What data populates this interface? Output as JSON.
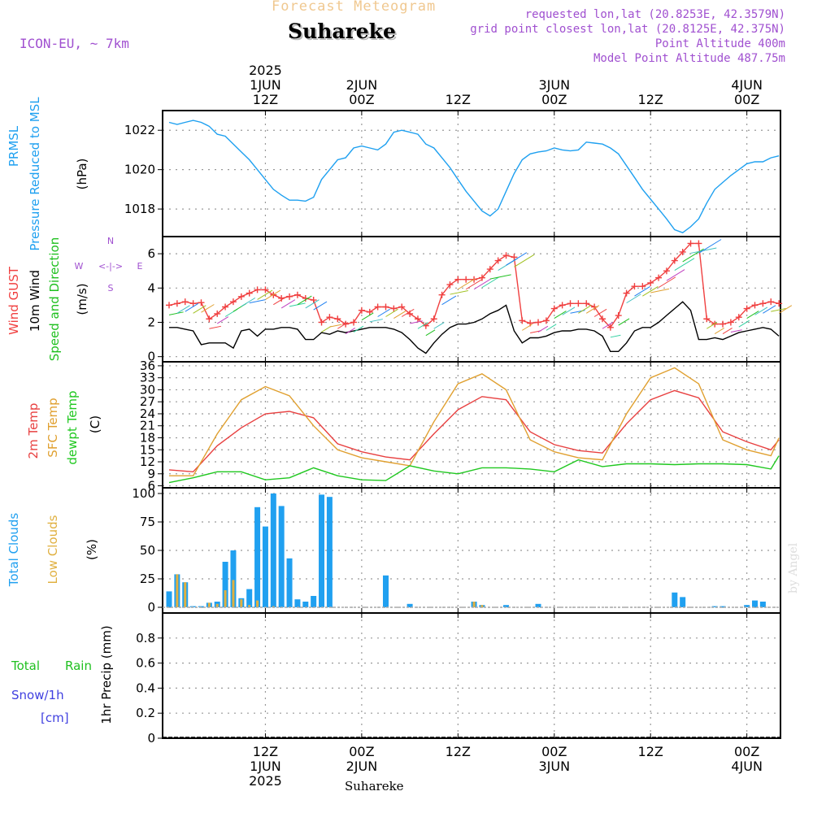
{
  "header": {
    "title": "Forecast Meteogram",
    "location": "Suhareke",
    "model": "ICON-EU, ~ 7km",
    "requested": "requested lon,lat (20.8253E, 42.3579N)",
    "grid_point": "grid point closest lon,lat (20.8125E, 42.375N)",
    "point_altitude": "Point Altitude 400m",
    "model_altitude": "Model Point Altitude 487.75m",
    "footer_location": "Suhareke",
    "credit": "by Angel"
  },
  "colors": {
    "pressure": "#1ea0f0",
    "gust": "#f04040",
    "wind": "#000000",
    "direction": "#20c020",
    "temp2m": "#e84040",
    "sfc": "#e0a030",
    "dewpt": "#20c820",
    "total_clouds": "#20a0f0",
    "low_clouds": "#e0b040",
    "rain": "#20c020",
    "snow": "#4040e0",
    "compass": "#a050d0",
    "title": "#f0c890"
  },
  "time_axis": {
    "top": [
      {
        "hour": 12,
        "lines": [
          "2025",
          "1JUN",
          "12Z"
        ]
      },
      {
        "hour": 24,
        "lines": [
          "2JUN",
          "00Z"
        ]
      },
      {
        "hour": 36,
        "lines": [
          "12Z"
        ]
      },
      {
        "hour": 48,
        "lines": [
          "3JUN",
          "00Z"
        ]
      },
      {
        "hour": 60,
        "lines": [
          "12Z"
        ]
      },
      {
        "hour": 72,
        "lines": [
          "4JUN",
          "00Z"
        ]
      }
    ],
    "bottom": [
      {
        "hour": 12,
        "lines": [
          "12Z",
          "1JUN",
          "2025"
        ]
      },
      {
        "hour": 24,
        "lines": [
          "00Z",
          "2JUN"
        ]
      },
      {
        "hour": 36,
        "lines": [
          "12Z"
        ]
      },
      {
        "hour": 48,
        "lines": [
          "00Z",
          "3JUN"
        ]
      },
      {
        "hour": 60,
        "lines": [
          "12Z"
        ]
      },
      {
        "hour": 72,
        "lines": [
          "00Z",
          "4JUN"
        ]
      }
    ]
  },
  "compass": {
    "n": "N",
    "s": "S",
    "w": "W",
    "e": "E",
    "arrows": "<-|->"
  },
  "chart_data": [
    {
      "type": "line",
      "panel": "pressure",
      "ylabels": [
        {
          "text": "PRMSL",
          "color": "pressure"
        },
        {
          "text": "Pressure Reduced to MSL",
          "color": "pressure"
        },
        {
          "text": "(hPa)",
          "color": "wind"
        }
      ],
      "ylim": [
        1016.6,
        1023
      ],
      "yticks": [
        1018,
        1020,
        1022
      ],
      "series": [
        {
          "name": "PRMSL",
          "color": "pressure",
          "x": [
            0,
            1,
            2,
            3,
            4,
            5,
            6,
            7,
            8,
            9,
            10,
            11,
            12,
            13,
            14,
            15,
            16,
            17,
            18,
            19,
            20,
            21,
            22,
            23,
            24,
            25,
            26,
            27,
            28,
            29,
            30,
            31,
            32,
            33,
            34,
            35,
            36,
            37,
            38,
            39,
            40,
            41,
            42,
            43,
            44,
            45,
            46,
            47,
            48,
            49,
            50,
            51,
            52,
            53,
            54,
            55,
            56,
            57,
            58,
            59,
            60,
            61,
            62,
            63,
            64,
            65,
            66,
            67,
            68,
            69,
            70,
            71,
            72,
            73,
            74,
            75,
            76
          ],
          "values": [
            1022.4,
            1022.3,
            1022.4,
            1022.5,
            1022.4,
            1022.2,
            1021.8,
            1021.7,
            1021.3,
            1020.9,
            1020.5,
            1020.0,
            1019.5,
            1019.0,
            1018.7,
            1018.45,
            1018.45,
            1018.4,
            1018.6,
            1019.5,
            1020.0,
            1020.5,
            1020.6,
            1021.1,
            1021.2,
            1021.1,
            1021.0,
            1021.3,
            1021.9,
            1022.0,
            1021.9,
            1021.8,
            1021.3,
            1021.1,
            1020.6,
            1020.1,
            1019.5,
            1018.9,
            1018.4,
            1017.9,
            1017.65,
            1018.0,
            1018.9,
            1019.8,
            1020.5,
            1020.8,
            1020.9,
            1020.95,
            1021.1,
            1021.0,
            1020.95,
            1021.0,
            1021.4,
            1021.35,
            1021.3,
            1021.1,
            1020.8,
            1020.2,
            1019.6,
            1019.0,
            1018.5,
            1018.0,
            1017.5,
            1016.95,
            1016.8,
            1017.1,
            1017.5,
            1018.3,
            1019.0,
            1019.35,
            1019.7,
            1020.0,
            1020.3,
            1020.4,
            1020.4,
            1020.6,
            1020.7
          ]
        }
      ]
    },
    {
      "type": "line",
      "panel": "wind",
      "ylabels": [
        {
          "text": "Wind GUST",
          "color": "gust"
        },
        {
          "text": "10m Wind",
          "color": "wind"
        },
        {
          "text": "Speed and Direction",
          "color": "direction"
        },
        {
          "text": "(m/s)",
          "color": "wind"
        }
      ],
      "ylim": [
        -0.3,
        7.0
      ],
      "yticks": [
        0,
        2,
        4,
        6
      ],
      "series": [
        {
          "name": "Wind GUST",
          "color": "gust",
          "marker": "+",
          "x": [
            0,
            1,
            2,
            3,
            4,
            5,
            6,
            7,
            8,
            9,
            10,
            11,
            12,
            13,
            14,
            15,
            16,
            17,
            18,
            19,
            20,
            21,
            22,
            23,
            24,
            25,
            26,
            27,
            28,
            29,
            30,
            31,
            32,
            33,
            34,
            35,
            36,
            37,
            38,
            39,
            40,
            41,
            42,
            43,
            44,
            45,
            46,
            47,
            48,
            49,
            50,
            51,
            52,
            53,
            54,
            55,
            56,
            57,
            58,
            59,
            60,
            61,
            62,
            63,
            64,
            65,
            66,
            67,
            68,
            69,
            70,
            71,
            72,
            73,
            74,
            75,
            76
          ],
          "values": [
            3.0,
            3.1,
            3.2,
            3.1,
            3.15,
            2.2,
            2.5,
            2.9,
            3.2,
            3.5,
            3.7,
            3.9,
            3.9,
            3.6,
            3.4,
            3.5,
            3.6,
            3.4,
            3.3,
            2.0,
            2.3,
            2.2,
            1.9,
            2.0,
            2.7,
            2.6,
            2.9,
            2.9,
            2.8,
            2.9,
            2.5,
            2.2,
            1.8,
            2.2,
            3.6,
            4.2,
            4.5,
            4.5,
            4.5,
            4.6,
            5.1,
            5.6,
            5.9,
            5.8,
            2.1,
            1.95,
            2.0,
            2.1,
            2.8,
            3.0,
            3.1,
            3.1,
            3.1,
            2.9,
            2.2,
            1.7,
            2.4,
            3.7,
            4.1,
            4.1,
            4.3,
            4.6,
            5.0,
            5.6,
            6.1,
            6.6,
            6.6,
            2.2,
            1.9,
            1.9,
            2.0,
            2.3,
            2.8,
            3.0,
            3.1,
            3.2,
            3.1
          ]
        },
        {
          "name": "10m Wind",
          "color": "wind",
          "x": [
            0,
            1,
            2,
            3,
            4,
            5,
            6,
            7,
            8,
            9,
            10,
            11,
            12,
            13,
            14,
            15,
            16,
            17,
            18,
            19,
            20,
            21,
            22,
            23,
            24,
            25,
            26,
            27,
            28,
            29,
            30,
            31,
            32,
            33,
            34,
            35,
            36,
            37,
            38,
            39,
            40,
            41,
            42,
            43,
            44,
            45,
            46,
            47,
            48,
            49,
            50,
            51,
            52,
            53,
            54,
            55,
            56,
            57,
            58,
            59,
            60,
            61,
            62,
            63,
            64,
            65,
            66,
            67,
            68,
            69,
            70,
            71,
            72,
            73,
            74,
            75,
            76
          ],
          "values": [
            1.7,
            1.7,
            1.6,
            1.5,
            0.7,
            0.8,
            0.8,
            0.8,
            0.5,
            1.5,
            1.6,
            1.2,
            1.6,
            1.6,
            1.7,
            1.7,
            1.6,
            1.0,
            1.0,
            1.4,
            1.3,
            1.5,
            1.4,
            1.5,
            1.6,
            1.7,
            1.7,
            1.7,
            1.6,
            1.4,
            1.0,
            0.5,
            0.2,
            0.8,
            1.3,
            1.7,
            1.9,
            1.9,
            2.0,
            2.2,
            2.5,
            2.7,
            3.0,
            1.5,
            0.8,
            1.1,
            1.1,
            1.2,
            1.4,
            1.5,
            1.5,
            1.6,
            1.6,
            1.5,
            1.2,
            0.3,
            0.3,
            0.8,
            1.5,
            1.7,
            1.7,
            2.0,
            2.4,
            2.8,
            3.2,
            2.7,
            1.0,
            1.0,
            1.1,
            1.0,
            1.2,
            1.4,
            1.5,
            1.6,
            1.7,
            1.6,
            1.2
          ]
        }
      ]
    },
    {
      "type": "line",
      "panel": "temperature",
      "ylabels": [
        {
          "text": "2m Temp",
          "color": "temp2m"
        },
        {
          "text": "SFC Temp",
          "color": "sfc"
        },
        {
          "text": "dewpt Temp",
          "color": "dewpt"
        },
        {
          "text": "(C)",
          "color": "wind"
        }
      ],
      "ylim": [
        5.5,
        37
      ],
      "yticks": [
        6,
        9,
        12,
        15,
        18,
        21,
        24,
        27,
        30,
        33,
        36
      ],
      "series": [
        {
          "name": "2m Temp",
          "color": "temp2m",
          "x": [
            0,
            3,
            6,
            9,
            12,
            15,
            18,
            21,
            24,
            27,
            30,
            33,
            36,
            39,
            42,
            45,
            48,
            51,
            54,
            57,
            60,
            63,
            66,
            69,
            72,
            75,
            76
          ],
          "values": [
            10.0,
            9.5,
            16.0,
            20.5,
            24.0,
            24.6,
            23.0,
            16.5,
            14.5,
            13.2,
            12.5,
            19.0,
            25.0,
            28.3,
            27.5,
            19.5,
            16.3,
            14.8,
            14.2,
            21.5,
            27.5,
            29.8,
            28.0,
            19.5,
            17.0,
            15.0,
            17.5
          ]
        },
        {
          "name": "SFC Temp",
          "color": "sfc",
          "x": [
            0,
            3,
            6,
            9,
            12,
            15,
            18,
            21,
            24,
            27,
            30,
            33,
            36,
            39,
            42,
            45,
            48,
            51,
            54,
            57,
            60,
            63,
            66,
            69,
            72,
            75,
            76
          ],
          "values": [
            8.5,
            8.5,
            19.0,
            27.5,
            30.8,
            28.5,
            21.0,
            15.0,
            13.0,
            12.0,
            11.0,
            22.0,
            31.5,
            34.0,
            30.0,
            17.5,
            14.5,
            13.0,
            12.5,
            24.0,
            33.0,
            35.5,
            31.5,
            17.5,
            15.0,
            13.5,
            18.0
          ]
        },
        {
          "name": "dewpt Temp",
          "color": "dewpt",
          "x": [
            0,
            3,
            6,
            9,
            12,
            15,
            18,
            21,
            24,
            27,
            30,
            33,
            36,
            39,
            42,
            45,
            48,
            51,
            54,
            57,
            60,
            63,
            66,
            69,
            72,
            75,
            76
          ],
          "values": [
            6.8,
            8.0,
            9.5,
            9.5,
            7.5,
            8.0,
            10.5,
            8.5,
            7.5,
            7.3,
            11.0,
            9.7,
            9.0,
            10.5,
            10.5,
            10.2,
            9.5,
            12.5,
            10.8,
            11.5,
            11.5,
            11.3,
            11.5,
            11.5,
            11.3,
            10.2,
            13.5
          ]
        }
      ]
    },
    {
      "type": "bar",
      "panel": "clouds",
      "ylabels": [
        {
          "text": "Total Clouds",
          "color": "total_clouds"
        },
        {
          "text": "Low Clouds",
          "color": "low_clouds"
        },
        {
          "text": "(%)",
          "color": "wind"
        }
      ],
      "ylim": [
        -5,
        105
      ],
      "yticks": [
        0,
        25,
        50,
        75,
        100
      ],
      "x": [
        0,
        1,
        2,
        3,
        4,
        5,
        6,
        7,
        8,
        9,
        10,
        11,
        12,
        13,
        14,
        15,
        16,
        17,
        18,
        19,
        20,
        21,
        22,
        23,
        24,
        25,
        26,
        27,
        28,
        29,
        30,
        31,
        32,
        33,
        34,
        35,
        36,
        37,
        38,
        39,
        40,
        41,
        42,
        43,
        44,
        45,
        46,
        47,
        48,
        49,
        50,
        51,
        52,
        53,
        54,
        55,
        56,
        57,
        58,
        59,
        60,
        61,
        62,
        63,
        64,
        65,
        66,
        67,
        68,
        69,
        70,
        71,
        72,
        73,
        74,
        75,
        76
      ],
      "series": [
        {
          "name": "Total Clouds",
          "color": "total_clouds",
          "values": [
            14,
            29,
            22,
            1,
            1,
            4,
            5,
            40,
            50,
            8,
            16,
            88,
            71,
            100,
            89,
            43,
            7,
            5,
            10,
            99,
            97,
            0,
            0,
            0,
            0,
            0,
            0,
            28,
            0,
            0,
            3,
            0,
            0,
            0,
            0,
            0,
            0,
            0,
            5,
            2,
            0,
            0,
            2,
            0,
            0,
            0,
            3,
            0,
            0,
            0,
            0,
            0,
            0,
            0,
            0,
            0,
            0,
            0,
            0,
            0,
            0,
            0,
            0,
            13,
            9,
            0,
            0,
            0,
            1,
            1,
            0,
            0,
            2,
            6,
            5,
            0,
            0
          ]
        },
        {
          "name": "Low Clouds",
          "color": "low_clouds",
          "values": [
            0,
            29,
            22,
            0,
            0,
            4,
            3,
            15,
            24,
            7,
            2,
            6,
            0,
            1,
            0,
            0,
            0,
            0,
            0,
            0,
            0,
            0,
            0,
            0,
            0,
            0,
            0,
            0,
            0,
            0,
            0,
            0,
            0,
            0,
            0,
            0,
            0,
            0,
            5,
            2,
            0,
            0,
            0,
            0,
            0,
            0,
            0,
            0,
            0,
            0,
            0,
            0,
            0,
            0,
            0,
            0,
            0,
            0,
            0,
            0,
            0,
            0,
            0,
            0,
            0,
            0,
            0,
            0,
            0,
            0,
            0,
            0,
            0,
            0,
            0,
            0,
            0
          ]
        }
      ]
    },
    {
      "type": "bar",
      "panel": "precip",
      "ylabels_left": [
        {
          "text": "Total",
          "color": "rain"
        },
        {
          "text": "Rain",
          "color": "rain"
        },
        {
          "text": "Snow/1h",
          "color": "snow"
        },
        {
          "text": "[cm]",
          "color": "snow"
        }
      ],
      "ylabel": "1hr Precip (mm)",
      "ylim": [
        0,
        1.0
      ],
      "yticks": [
        0,
        0.2,
        0.4,
        0.6,
        0.8
      ],
      "series": [
        {
          "name": "Total Rain",
          "color": "rain",
          "values": []
        }
      ]
    }
  ]
}
